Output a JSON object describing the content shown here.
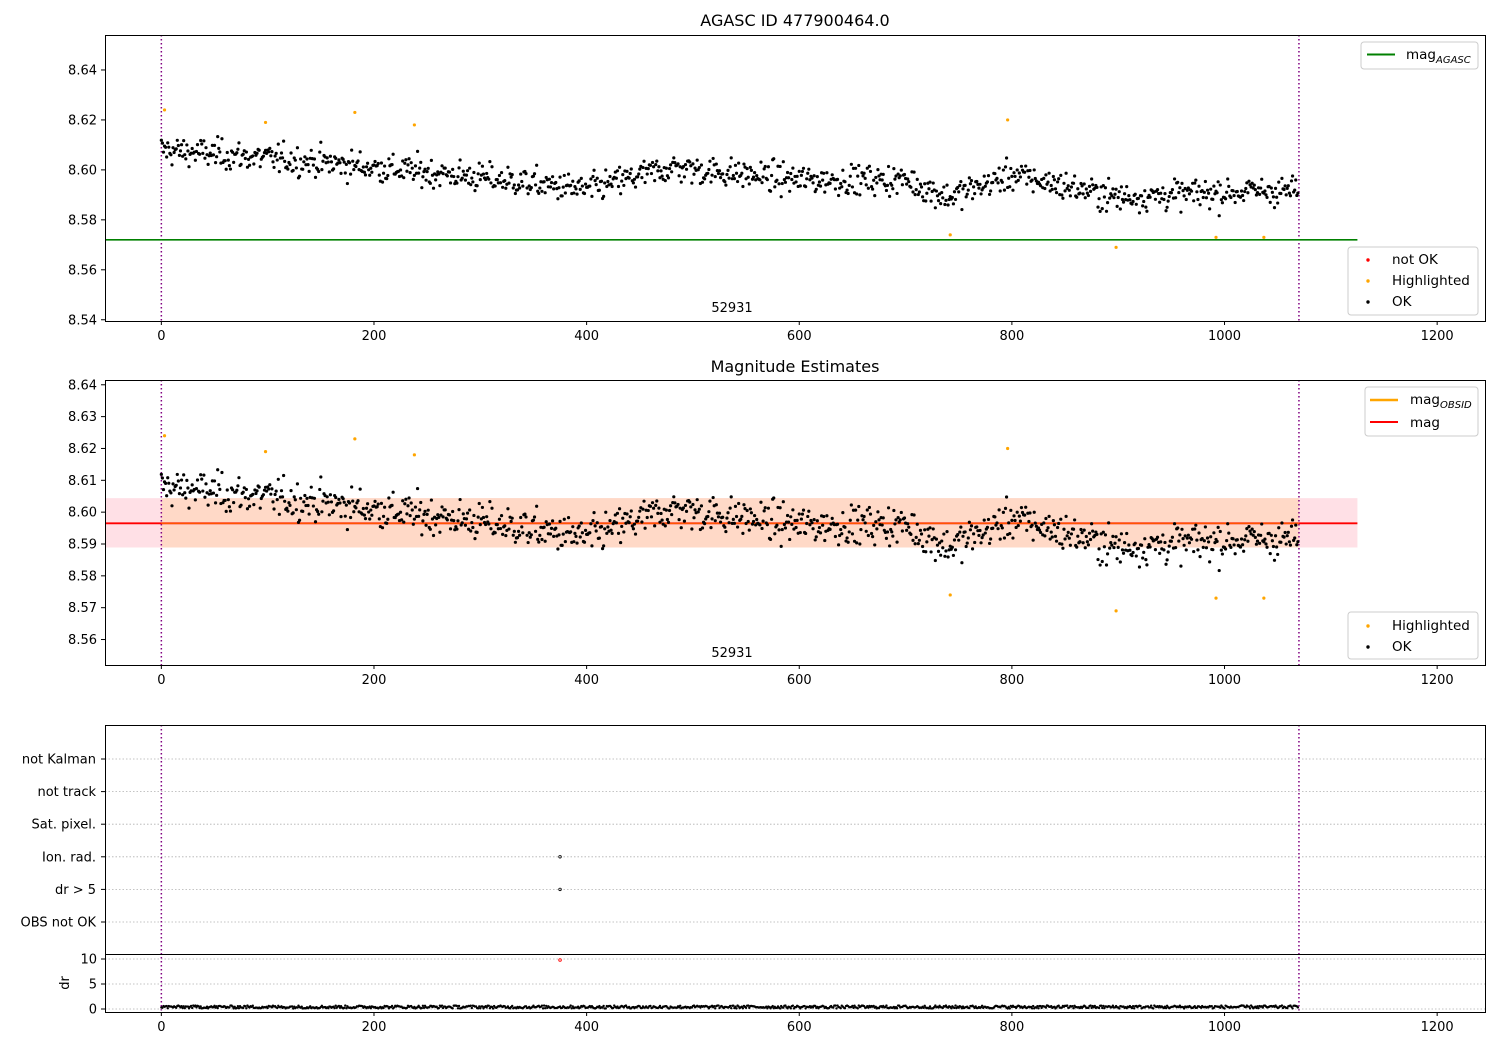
{
  "colors": {
    "ok": "#000000",
    "highlighted": "#ffa500",
    "not_ok": "#ff0000",
    "mag_agasc": "#008000",
    "mag_obsid": "#ffa500",
    "mag": "#ff0000",
    "obs_boundary": "#800080",
    "band_outer": "#ffe0e6",
    "band_inner": "#ffd9c7"
  },
  "chart_data": [
    {
      "type": "scatter",
      "title": "AGASC ID 477900464.0",
      "xlabel": "",
      "ylabel": "",
      "xlim": [
        -53,
        1245
      ],
      "ylim": [
        8.5395,
        8.654
      ],
      "xticks": [
        "0",
        "200",
        "400",
        "600",
        "800",
        "1000",
        "1200"
      ],
      "xtick_values": [
        0,
        200,
        400,
        600,
        800,
        1000,
        1200
      ],
      "yticks": [
        "8.54",
        "8.56",
        "8.58",
        "8.60",
        "8.62",
        "8.64"
      ],
      "ytick_values": [
        8.54,
        8.56,
        8.58,
        8.6,
        8.62,
        8.64
      ],
      "obsid_annotation": "52931",
      "obs_boundaries": [
        0,
        1070
      ],
      "lines": [
        {
          "name": "mag_AGASC",
          "y": 8.572,
          "x_range": [
            -53,
            1125
          ]
        }
      ],
      "series": [
        {
          "name": "not OK",
          "points": []
        },
        {
          "name": "Highlighted",
          "points": [
            [
              3,
              8.624
            ],
            [
              98,
              8.619
            ],
            [
              182,
              8.623
            ],
            [
              238,
              8.618
            ],
            [
              742,
              8.574
            ],
            [
              796,
              8.62
            ],
            [
              898,
              8.569
            ],
            [
              992,
              8.573
            ],
            [
              1037,
              8.573
            ]
          ]
        },
        {
          "name": "OK",
          "approx_count": 1070,
          "x_range": [
            0,
            1070
          ],
          "y_mean_profile": [
            [
              0,
              8.608
            ],
            [
              150,
              8.603
            ],
            [
              300,
              8.597
            ],
            [
              400,
              8.592
            ],
            [
              480,
              8.601
            ],
            [
              600,
              8.596
            ],
            [
              700,
              8.596
            ],
            [
              740,
              8.589
            ],
            [
              800,
              8.598
            ],
            [
              900,
              8.589
            ],
            [
              1000,
              8.591
            ],
            [
              1070,
              8.592
            ]
          ],
          "y_spread": 0.0055,
          "y_min": 8.576,
          "y_max": 8.615
        }
      ],
      "legends": [
        {
          "position": "top-right",
          "entries": [
            {
              "label": "mag",
              "sub": "AGASC",
              "color_key": "mag_agasc"
            }
          ]
        },
        {
          "position": "bottom-right",
          "entries": [
            {
              "label": "not OK",
              "color_key": "not_ok"
            },
            {
              "label": "Highlighted",
              "color_key": "highlighted"
            },
            {
              "label": "OK",
              "color_key": "ok"
            }
          ]
        }
      ]
    },
    {
      "type": "scatter",
      "title": "Magnitude Estimates",
      "xlabel": "",
      "ylabel": "",
      "xlim": [
        -53,
        1245
      ],
      "ylim": [
        8.552,
        8.6415
      ],
      "xticks": [
        "0",
        "200",
        "400",
        "600",
        "800",
        "1000",
        "1200"
      ],
      "xtick_values": [
        0,
        200,
        400,
        600,
        800,
        1000,
        1200
      ],
      "yticks": [
        "8.56",
        "8.57",
        "8.58",
        "8.59",
        "8.60",
        "8.61",
        "8.62",
        "8.63",
        "8.64"
      ],
      "ytick_values": [
        8.56,
        8.57,
        8.58,
        8.59,
        8.6,
        8.61,
        8.62,
        8.63,
        8.64
      ],
      "obsid_annotation": "52931",
      "obs_boundaries": [
        0,
        1070
      ],
      "bands": [
        {
          "name": "mag range",
          "y_range": [
            8.5889,
            8.6044
          ],
          "x_range": [
            -53,
            1125
          ],
          "color_key": "band_outer"
        },
        {
          "name": "mag_OBSID range",
          "y_range": [
            8.5889,
            8.6044
          ],
          "x_range": [
            0,
            1070
          ],
          "color_key": "band_inner"
        }
      ],
      "lines": [
        {
          "name": "mag",
          "y": 8.5965,
          "x_range": [
            -53,
            1125
          ]
        },
        {
          "name": "mag_OBSID",
          "y": 8.5965,
          "x_range": [
            0,
            1070
          ]
        }
      ],
      "series": [
        {
          "name": "Highlighted",
          "points": [
            [
              3,
              8.624
            ],
            [
              98,
              8.619
            ],
            [
              182,
              8.623
            ],
            [
              238,
              8.618
            ],
            [
              742,
              8.574
            ],
            [
              796,
              8.62
            ],
            [
              898,
              8.569
            ],
            [
              992,
              8.573
            ],
            [
              1037,
              8.573
            ]
          ]
        },
        {
          "name": "OK",
          "approx_count": 1070,
          "x_range": [
            0,
            1070
          ],
          "same_as_panel": 0
        }
      ],
      "legends": [
        {
          "position": "top-right",
          "entries": [
            {
              "label": "mag",
              "sub": "OBSID",
              "color_key": "mag_obsid"
            },
            {
              "label": "mag",
              "sub": "",
              "color_key": "mag"
            }
          ]
        },
        {
          "position": "bottom-right",
          "entries": [
            {
              "label": "Highlighted",
              "color_key": "highlighted"
            },
            {
              "label": "OK",
              "color_key": "ok"
            }
          ]
        }
      ]
    },
    {
      "type": "scatter",
      "title": "",
      "xlabel": "",
      "ylabel": "",
      "xlim": [
        -53,
        1245
      ],
      "categories": [
        "OBS not OK",
        "dr > 5",
        "Ion. rad.",
        "Sat. pixel.",
        "not track",
        "not Kalman"
      ],
      "obs_boundaries": [
        0,
        1070
      ],
      "series": [
        {
          "name": "flags",
          "points": [
            [
              375,
              "Ion. rad."
            ],
            [
              375,
              "dr > 5"
            ]
          ]
        }
      ]
    },
    {
      "type": "scatter",
      "title": "",
      "xlabel": "",
      "ylabel": "dr",
      "xlim": [
        -53,
        1245
      ],
      "ylim": [
        -0.6,
        11
      ],
      "yticks": [
        "0",
        "5",
        "10"
      ],
      "ytick_values": [
        0,
        5,
        10
      ],
      "xticks": [
        "0",
        "200",
        "400",
        "600",
        "800",
        "1000",
        "1200"
      ],
      "xtick_values": [
        0,
        200,
        400,
        600,
        800,
        1000,
        1200
      ],
      "obs_boundaries": [
        0,
        1070
      ],
      "series": [
        {
          "name": "dr",
          "approx_count": 1070,
          "x_range": [
            0,
            1070
          ],
          "y_typical": [
            0.1,
            0.7
          ]
        },
        {
          "name": "dr outlier",
          "points": [
            [
              375,
              9.8
            ]
          ]
        }
      ]
    }
  ]
}
